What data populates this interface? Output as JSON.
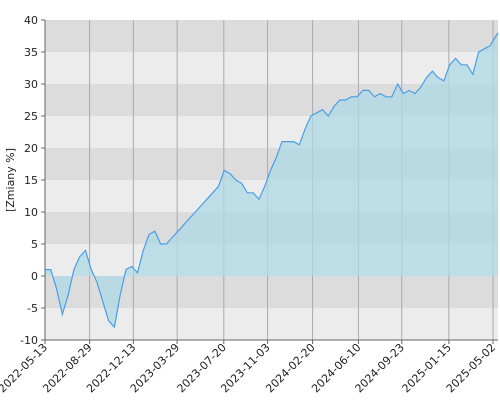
{
  "chart_data": {
    "type": "area",
    "y_label": "[Zmiany %]",
    "x": [
      "2022-05-13",
      "2022-05-27",
      "2022-06-10",
      "2022-06-24",
      "2022-07-08",
      "2022-07-22",
      "2022-08-05",
      "2022-08-19",
      "2022-09-02",
      "2022-09-16",
      "2022-09-30",
      "2022-10-14",
      "2022-10-28",
      "2022-11-11",
      "2022-11-25",
      "2022-12-09",
      "2022-12-23",
      "2023-01-06",
      "2023-01-20",
      "2023-02-03",
      "2023-02-17",
      "2023-03-03",
      "2023-03-17",
      "2023-03-31",
      "2023-04-14",
      "2023-04-28",
      "2023-05-12",
      "2023-05-26",
      "2023-06-09",
      "2023-06-23",
      "2023-07-07",
      "2023-07-21",
      "2023-08-04",
      "2023-08-18",
      "2023-09-01",
      "2023-09-15",
      "2023-09-29",
      "2023-10-13",
      "2023-10-27",
      "2023-11-10",
      "2023-11-24",
      "2023-12-08",
      "2023-12-22",
      "2024-01-05",
      "2024-01-19",
      "2024-02-02",
      "2024-02-16",
      "2024-03-01",
      "2024-03-15",
      "2024-03-29",
      "2024-04-12",
      "2024-04-26",
      "2024-05-10",
      "2024-05-24",
      "2024-06-07",
      "2024-06-21",
      "2024-07-05",
      "2024-07-19",
      "2024-08-02",
      "2024-08-16",
      "2024-08-30",
      "2024-09-13",
      "2024-09-27",
      "2024-10-11",
      "2024-10-25",
      "2024-11-08",
      "2024-11-22",
      "2024-12-06",
      "2024-12-20",
      "2025-01-03",
      "2025-01-17",
      "2025-01-31",
      "2025-02-14",
      "2025-02-28",
      "2025-03-14",
      "2025-03-28",
      "2025-04-11",
      "2025-04-25",
      "2025-05-09",
      "2025-05-14"
    ],
    "series": [
      {
        "color": "#4a9ee8",
        "fill_color": "#add8e6",
        "values": [
          1,
          1,
          -2,
          -6,
          -3,
          1,
          3,
          4,
          1,
          -1,
          -4,
          -7,
          -8,
          -3,
          1,
          1.5,
          0.5,
          4,
          6.5,
          7,
          5,
          5,
          6,
          7,
          8,
          9,
          10,
          11,
          12,
          13,
          14,
          16.5,
          16,
          15,
          14.5,
          13,
          13,
          12,
          14,
          16.5,
          18.5,
          21,
          21,
          21,
          20.5,
          23,
          25,
          25.5,
          26,
          25,
          26.5,
          27.5,
          27.5,
          28,
          28,
          29,
          29,
          28,
          28.5,
          28,
          28,
          30,
          28.5,
          29,
          28.5,
          29.5,
          31,
          32,
          31,
          30.5,
          33,
          34,
          33,
          33,
          31.5,
          35,
          35.5,
          36,
          37.5,
          38
        ]
      }
    ],
    "xlim": [
      "2022-05-13",
      "2025-05-14"
    ],
    "xticks": [
      "2022-05-13",
      "2022-08-29",
      "2022-12-13",
      "2023-03-29",
      "2023-07-20",
      "2023-11-03",
      "2024-02-20",
      "2024-06-10",
      "2024-09-23",
      "2025-01-15",
      "2025-05-02"
    ],
    "ylim": [
      -10,
      40
    ],
    "yticks": [
      -10,
      -5,
      0,
      5,
      10,
      15,
      20,
      25,
      30,
      35,
      40
    ],
    "grid": true,
    "band_colors": [
      "#dcdcdc",
      "#ececec"
    ],
    "grid_color": "#aaaaaa"
  }
}
